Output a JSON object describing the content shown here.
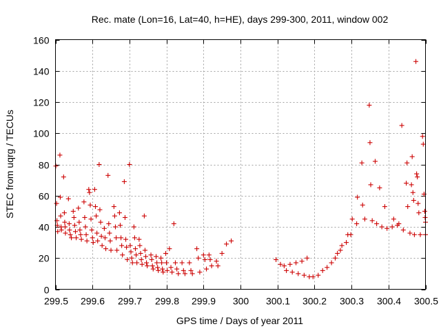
{
  "chart_data": {
    "type": "scatter",
    "title": "Rec. mate (Lon=16, Lat=40, h=HE), days 299-300, 2011, window 002",
    "xlabel": "GPS time / Days of year 2011",
    "ylabel": "STEC from uqrg / TECUs",
    "xlim": [
      299.5,
      300.5
    ],
    "ylim": [
      0,
      160
    ],
    "grid": true,
    "marker": "+",
    "color": "#cc0000",
    "x_ticks": [
      {
        "value": 299.5,
        "label": "299.5"
      },
      {
        "value": 299.6,
        "label": "299.6"
      },
      {
        "value": 299.7,
        "label": "299.7"
      },
      {
        "value": 299.8,
        "label": "299.8"
      },
      {
        "value": 299.9,
        "label": "299.9"
      },
      {
        "value": 300.0,
        "label": "300"
      },
      {
        "value": 300.1,
        "label": "300.1"
      },
      {
        "value": 300.2,
        "label": "300.2"
      },
      {
        "value": 300.3,
        "label": "300.3"
      },
      {
        "value": 300.4,
        "label": "300.4"
      },
      {
        "value": 300.5,
        "label": "300.5"
      }
    ],
    "y_ticks": [
      {
        "value": 0,
        "label": "0"
      },
      {
        "value": 20,
        "label": "20"
      },
      {
        "value": 40,
        "label": "40"
      },
      {
        "value": 60,
        "label": "60"
      },
      {
        "value": 80,
        "label": "80"
      },
      {
        "value": 100,
        "label": "100"
      },
      {
        "value": 120,
        "label": "120"
      },
      {
        "value": 140,
        "label": "140"
      },
      {
        "value": 160,
        "label": "160"
      }
    ],
    "series": [
      {
        "name": "STEC",
        "points": [
          [
            299.501,
            79
          ],
          [
            299.503,
            55
          ],
          [
            299.504,
            44
          ],
          [
            299.505,
            41
          ],
          [
            299.506,
            37
          ],
          [
            299.512,
            86
          ],
          [
            299.513,
            59
          ],
          [
            299.514,
            47
          ],
          [
            299.515,
            40
          ],
          [
            299.516,
            38
          ],
          [
            299.522,
            72
          ],
          [
            299.524,
            49
          ],
          [
            299.525,
            43
          ],
          [
            299.526,
            40
          ],
          [
            299.527,
            36
          ],
          [
            299.535,
            58
          ],
          [
            299.537,
            42
          ],
          [
            299.538,
            38
          ],
          [
            299.54,
            35
          ],
          [
            299.543,
            33
          ],
          [
            299.548,
            50
          ],
          [
            299.55,
            46
          ],
          [
            299.552,
            41
          ],
          [
            299.554,
            37
          ],
          [
            299.556,
            33
          ],
          [
            299.562,
            52
          ],
          [
            299.564,
            43
          ],
          [
            299.566,
            38
          ],
          [
            299.568,
            35
          ],
          [
            299.57,
            32
          ],
          [
            299.577,
            56
          ],
          [
            299.579,
            46
          ],
          [
            299.581,
            40
          ],
          [
            299.583,
            35
          ],
          [
            299.585,
            31
          ],
          [
            299.59,
            64
          ],
          [
            299.592,
            62
          ],
          [
            299.594,
            54
          ],
          [
            299.596,
            45
          ],
          [
            299.598,
            38
          ],
          [
            299.6,
            33
          ],
          [
            299.602,
            30
          ],
          [
            299.606,
            64
          ],
          [
            299.608,
            53
          ],
          [
            299.61,
            47
          ],
          [
            299.612,
            36
          ],
          [
            299.614,
            31
          ],
          [
            299.618,
            80
          ],
          [
            299.62,
            51
          ],
          [
            299.622,
            43
          ],
          [
            299.624,
            34
          ],
          [
            299.626,
            28
          ],
          [
            299.632,
            39
          ],
          [
            299.634,
            33
          ],
          [
            299.636,
            26
          ],
          [
            299.642,
            73
          ],
          [
            299.644,
            42
          ],
          [
            299.646,
            36
          ],
          [
            299.648,
            31
          ],
          [
            299.65,
            25
          ],
          [
            299.658,
            53
          ],
          [
            299.66,
            47
          ],
          [
            299.662,
            40
          ],
          [
            299.664,
            33
          ],
          [
            299.666,
            25
          ],
          [
            299.673,
            49
          ],
          [
            299.675,
            41
          ],
          [
            299.677,
            33
          ],
          [
            299.679,
            28
          ],
          [
            299.681,
            22
          ],
          [
            299.686,
            69
          ],
          [
            299.688,
            46
          ],
          [
            299.69,
            32
          ],
          [
            299.692,
            27
          ],
          [
            299.694,
            19
          ],
          [
            299.7,
            80
          ],
          [
            299.702,
            28
          ],
          [
            299.704,
            24
          ],
          [
            299.706,
            20
          ],
          [
            299.708,
            17
          ],
          [
            299.712,
            40
          ],
          [
            299.714,
            33
          ],
          [
            299.716,
            26
          ],
          [
            299.718,
            22
          ],
          [
            299.72,
            17
          ],
          [
            299.726,
            32
          ],
          [
            299.728,
            28
          ],
          [
            299.73,
            23
          ],
          [
            299.732,
            19
          ],
          [
            299.734,
            16
          ],
          [
            299.74,
            47
          ],
          [
            299.742,
            25
          ],
          [
            299.744,
            21
          ],
          [
            299.746,
            17
          ],
          [
            299.748,
            15
          ],
          [
            299.758,
            22
          ],
          [
            299.76,
            19
          ],
          [
            299.762,
            15
          ],
          [
            299.764,
            13
          ],
          [
            299.772,
            21
          ],
          [
            299.774,
            17
          ],
          [
            299.776,
            14
          ],
          [
            299.778,
            12
          ],
          [
            299.785,
            20
          ],
          [
            299.787,
            17
          ],
          [
            299.789,
            13
          ],
          [
            299.791,
            11
          ],
          [
            299.798,
            23
          ],
          [
            299.8,
            17
          ],
          [
            299.802,
            12
          ],
          [
            299.808,
            26
          ],
          [
            299.812,
            14
          ],
          [
            299.815,
            11
          ],
          [
            299.82,
            42
          ],
          [
            299.824,
            17
          ],
          [
            299.828,
            13
          ],
          [
            299.832,
            10
          ],
          [
            299.842,
            17
          ],
          [
            299.846,
            12
          ],
          [
            299.85,
            10
          ],
          [
            299.862,
            17
          ],
          [
            299.866,
            12
          ],
          [
            299.87,
            10
          ],
          [
            299.882,
            26
          ],
          [
            299.886,
            20
          ],
          [
            299.89,
            11
          ],
          [
            299.9,
            22
          ],
          [
            299.904,
            19
          ],
          [
            299.908,
            13
          ],
          [
            299.915,
            22
          ],
          [
            299.918,
            19
          ],
          [
            299.922,
            15
          ],
          [
            299.935,
            18
          ],
          [
            299.939,
            15
          ],
          [
            299.95,
            23
          ],
          [
            299.962,
            29
          ],
          [
            299.975,
            31
          ],
          [
            300.096,
            19
          ],
          [
            300.108,
            16
          ],
          [
            300.118,
            15
          ],
          [
            300.124,
            12
          ],
          [
            300.134,
            16
          ],
          [
            300.14,
            11
          ],
          [
            300.15,
            17
          ],
          [
            300.156,
            10
          ],
          [
            300.166,
            18
          ],
          [
            300.172,
            9
          ],
          [
            300.18,
            20
          ],
          [
            300.186,
            8
          ],
          [
            300.196,
            8
          ],
          [
            300.21,
            9
          ],
          [
            300.222,
            12
          ],
          [
            300.234,
            14
          ],
          [
            300.246,
            17
          ],
          [
            300.256,
            20
          ],
          [
            300.262,
            23
          ],
          [
            300.27,
            25
          ],
          [
            300.274,
            28
          ],
          [
            300.286,
            30
          ],
          [
            300.29,
            35
          ],
          [
            300.298,
            35
          ],
          [
            300.302,
            45
          ],
          [
            300.314,
            42
          ],
          [
            300.316,
            59
          ],
          [
            300.328,
            81
          ],
          [
            300.33,
            54
          ],
          [
            300.336,
            45
          ],
          [
            300.348,
            118
          ],
          [
            300.35,
            94
          ],
          [
            300.352,
            67
          ],
          [
            300.356,
            44
          ],
          [
            300.364,
            82
          ],
          [
            300.368,
            42
          ],
          [
            300.376,
            65
          ],
          [
            300.382,
            40
          ],
          [
            300.39,
            53
          ],
          [
            300.396,
            39
          ],
          [
            300.41,
            40
          ],
          [
            300.414,
            45
          ],
          [
            300.424,
            41
          ],
          [
            300.428,
            42
          ],
          [
            300.436,
            105
          ],
          [
            300.44,
            38
          ],
          [
            300.448,
            68
          ],
          [
            300.45,
            81
          ],
          [
            300.452,
            53
          ],
          [
            300.458,
            36
          ],
          [
            300.462,
            67
          ],
          [
            300.464,
            85
          ],
          [
            300.466,
            62
          ],
          [
            300.468,
            57
          ],
          [
            300.47,
            35
          ],
          [
            300.474,
            146
          ],
          [
            300.476,
            74
          ],
          [
            300.478,
            72
          ],
          [
            300.48,
            55
          ],
          [
            300.482,
            49
          ],
          [
            300.486,
            35
          ],
          [
            300.492,
            98
          ],
          [
            300.494,
            93
          ],
          [
            300.496,
            61
          ],
          [
            300.498,
            50
          ],
          [
            300.499,
            46
          ],
          [
            300.5,
            43
          ],
          [
            300.5,
            35
          ]
        ]
      }
    ]
  }
}
